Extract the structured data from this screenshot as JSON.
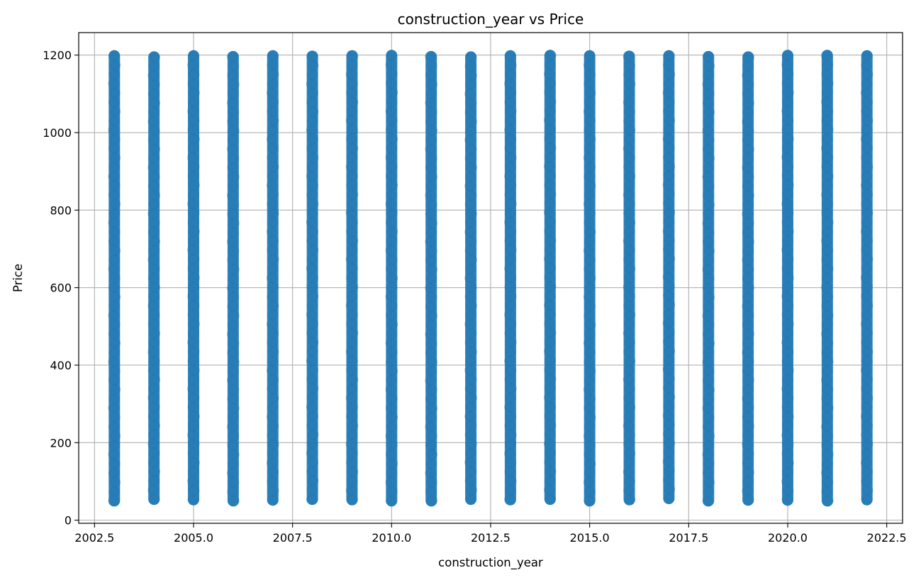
{
  "chart_data": {
    "type": "scatter",
    "title": "construction_year vs Price",
    "xlabel": "construction_year",
    "ylabel": "Price",
    "xlim": [
      2002.1,
      2022.9
    ],
    "ylim": [
      -8,
      1258
    ],
    "x_ticks": [
      2002.5,
      2005.0,
      2007.5,
      2010.0,
      2012.5,
      2015.0,
      2017.5,
      2020.0,
      2022.5
    ],
    "x_tick_labels": [
      "2002.5",
      "2005.0",
      "2007.5",
      "2010.0",
      "2012.5",
      "2015.0",
      "2017.5",
      "2020.0",
      "2022.5"
    ],
    "y_ticks": [
      0,
      200,
      400,
      600,
      800,
      1000,
      1200
    ],
    "y_tick_labels": [
      "0",
      "200",
      "400",
      "600",
      "800",
      "1000",
      "1200"
    ],
    "grid": true,
    "color": "#1f77b4",
    "marker_alpha": 0.5,
    "series": [
      {
        "x": [
          2003,
          2004,
          2005,
          2006,
          2007,
          2008,
          2009,
          2010,
          2011,
          2012,
          2013,
          2014,
          2015,
          2016,
          2017,
          2018,
          2019,
          2020,
          2021,
          2022
        ],
        "y_min": [
          50,
          54,
          53,
          50,
          52,
          54,
          53,
          50,
          50,
          54,
          53,
          54,
          50,
          53,
          56,
          50,
          52,
          52,
          50,
          53
        ],
        "y_max": [
          1198,
          1195,
          1198,
          1196,
          1198,
          1197,
          1198,
          1199,
          1196,
          1195,
          1198,
          1199,
          1198,
          1197,
          1198,
          1196,
          1195,
          1199,
          1199,
          1198
        ]
      }
    ]
  }
}
